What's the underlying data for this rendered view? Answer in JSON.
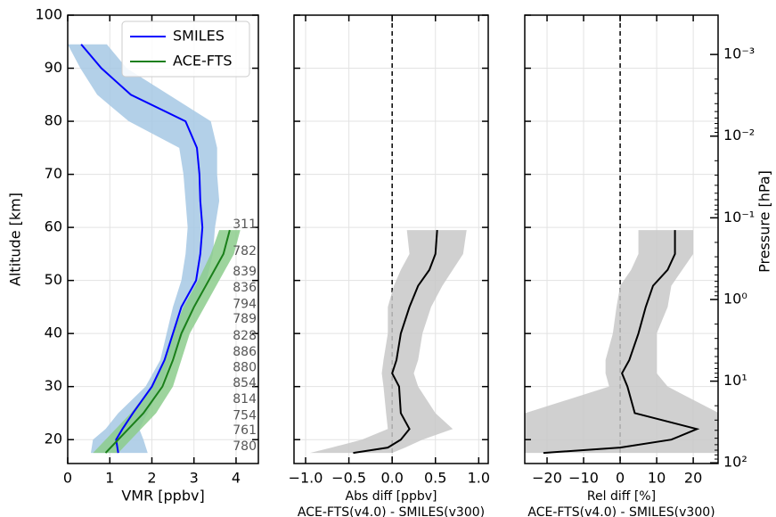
{
  "chart_data": [
    {
      "type": "line",
      "xlabel": "VMR [ppbv]",
      "ylabel": "Altitude [km]",
      "xlim": [
        0,
        4.53
      ],
      "ylim": [
        15.5,
        100
      ],
      "xticks": [
        0,
        1,
        2,
        3,
        4
      ],
      "yticks": [
        20,
        30,
        40,
        50,
        60,
        70,
        80,
        90,
        100
      ],
      "grid": true,
      "legend": "upper right",
      "series": [
        {
          "name": "SMILES",
          "color": "#0000ff",
          "y": [
            94.5,
            90,
            85,
            80,
            75,
            70,
            65,
            60,
            55,
            50,
            45,
            40,
            35,
            30,
            25,
            22,
            20,
            17.5
          ],
          "values": [
            0.32,
            0.8,
            1.5,
            2.8,
            3.07,
            3.13,
            3.15,
            3.2,
            3.15,
            3.05,
            2.7,
            2.5,
            2.3,
            2.0,
            1.55,
            1.3,
            1.15,
            1.2
          ],
          "band": {
            "color": "#a6c8e4",
            "lower": [
              0,
              0.3,
              0.7,
              1.45,
              2.65,
              2.75,
              2.8,
              2.85,
              2.8,
              2.7,
              2.5,
              2.35,
              2.2,
              1.85,
              1.2,
              0.9,
              0.6,
              0.55
            ],
            "upper": [
              0.93,
              1.4,
              2.4,
              3.4,
              3.55,
              3.55,
              3.6,
              3.5,
              3.45,
              3.3,
              3.0,
              2.75,
              2.45,
              2.2,
              1.9,
              1.7,
              1.8,
              1.9
            ]
          }
        },
        {
          "name": "ACE-FTS",
          "color": "#1a7f1a",
          "y": [
            59.5,
            55,
            50,
            45,
            40,
            35,
            30,
            25,
            20,
            17.5
          ],
          "values": [
            3.85,
            3.7,
            3.35,
            3.0,
            2.7,
            2.5,
            2.25,
            1.8,
            1.2,
            0.9
          ],
          "band": {
            "color": "#8ccc8c",
            "lower": [
              3.6,
              3.4,
              3.1,
              2.75,
              2.5,
              2.3,
              2.0,
              1.5,
              0.9,
              0.6
            ],
            "upper": [
              4.1,
              3.95,
              3.6,
              3.25,
              2.9,
              2.7,
              2.5,
              2.1,
              1.5,
              1.2
            ]
          }
        }
      ],
      "counts": [
        311,
        782,
        839,
        836,
        794,
        789,
        828,
        886,
        880,
        854,
        814,
        754,
        761,
        780
      ],
      "count_altitudes": [
        60.5,
        55.5,
        51.6,
        48.6,
        45.5,
        42.7,
        39.5,
        36.5,
        33.6,
        30.6,
        27.6,
        24.5,
        21.7,
        18.7
      ]
    },
    {
      "type": "line",
      "xlabel": [
        "Abs diff [ppbv]",
        "ACE-FTS(v4.0) - SMILES(v300)"
      ],
      "xlim": [
        -1.134,
        1.11
      ],
      "ylim": [
        15.5,
        100
      ],
      "xticks": [
        {
          "value": -1,
          "label": "−1.0"
        },
        {
          "value": -0.5,
          "label": "−0.5"
        },
        {
          "value": 0,
          "label": "0.0"
        },
        {
          "value": 0.5,
          "label": "0.5"
        },
        {
          "value": 1,
          "label": "1.0"
        }
      ],
      "yticks": [
        20,
        30,
        40,
        50,
        60,
        70,
        80,
        90,
        100
      ],
      "grid": true,
      "zero_line": true,
      "series": [
        {
          "color": "#000000",
          "y": [
            59.5,
            55,
            52,
            49,
            45,
            40,
            35,
            32.5,
            30,
            25,
            22,
            20,
            18.5,
            17.5
          ],
          "values": [
            0.52,
            0.5,
            0.43,
            0.3,
            0.2,
            0.1,
            0.05,
            0.0,
            0.08,
            0.1,
            0.2,
            0.1,
            -0.05,
            -0.45
          ],
          "band": {
            "color": "#c8c8c8",
            "lower": [
              0.17,
              0.2,
              0.1,
              0.02,
              -0.05,
              -0.05,
              -0.1,
              -0.12,
              -0.1,
              -0.07,
              -0.05,
              -0.35,
              -0.7,
              -0.95
            ],
            "upper": [
              0.86,
              0.82,
              0.7,
              0.58,
              0.45,
              0.35,
              0.3,
              0.25,
              0.3,
              0.5,
              0.7,
              0.35,
              0.15,
              0.0
            ]
          }
        }
      ]
    },
    {
      "type": "line",
      "xlabel": [
        "Rel diff [%]",
        "ACE-FTS(v4.0) - SMILES(v300)"
      ],
      "y2label": "Pressure [hPa]",
      "xlim": [
        -26.1,
        26.8
      ],
      "ylim": [
        15.5,
        100
      ],
      "xticks": [
        {
          "value": -20,
          "label": "−20"
        },
        {
          "value": -10,
          "label": "−10"
        },
        0,
        10,
        20
      ],
      "yticks": [
        20,
        30,
        40,
        50,
        60,
        70,
        80,
        90,
        100
      ],
      "grid": true,
      "zero_line": true,
      "y2lim": [
        102,
        0.00033
      ],
      "y2scale": "log",
      "y2ticks": [
        {
          "value": 0.001,
          "label": "10⁻³"
        },
        {
          "value": 0.01,
          "label": "10⁻²"
        },
        {
          "value": 0.1,
          "label": "10⁻¹"
        },
        {
          "value": 1,
          "label": "10⁰"
        },
        {
          "value": 10,
          "label": "10¹"
        },
        {
          "value": 100,
          "label": "10²"
        }
      ],
      "series": [
        {
          "color": "#000000",
          "y": [
            59.5,
            55,
            52,
            49,
            45,
            40,
            35,
            32.5,
            30,
            25,
            22,
            20,
            18.5,
            17.5
          ],
          "values": [
            15,
            15,
            13,
            9,
            7,
            5,
            2.5,
            0.5,
            2,
            4,
            21,
            14,
            0,
            -21
          ],
          "band": {
            "color": "#c8c8c8",
            "lower": [
              5,
              5,
              3,
              0,
              -1,
              -2,
              -4,
              -4,
              -3,
              -26,
              -26,
              -26,
              -26,
              -26
            ],
            "upper": [
              20,
              20,
              17,
              14,
              13,
              10,
              10,
              10,
              13,
              27,
              27,
              27,
              27,
              27
            ]
          }
        }
      ]
    }
  ]
}
